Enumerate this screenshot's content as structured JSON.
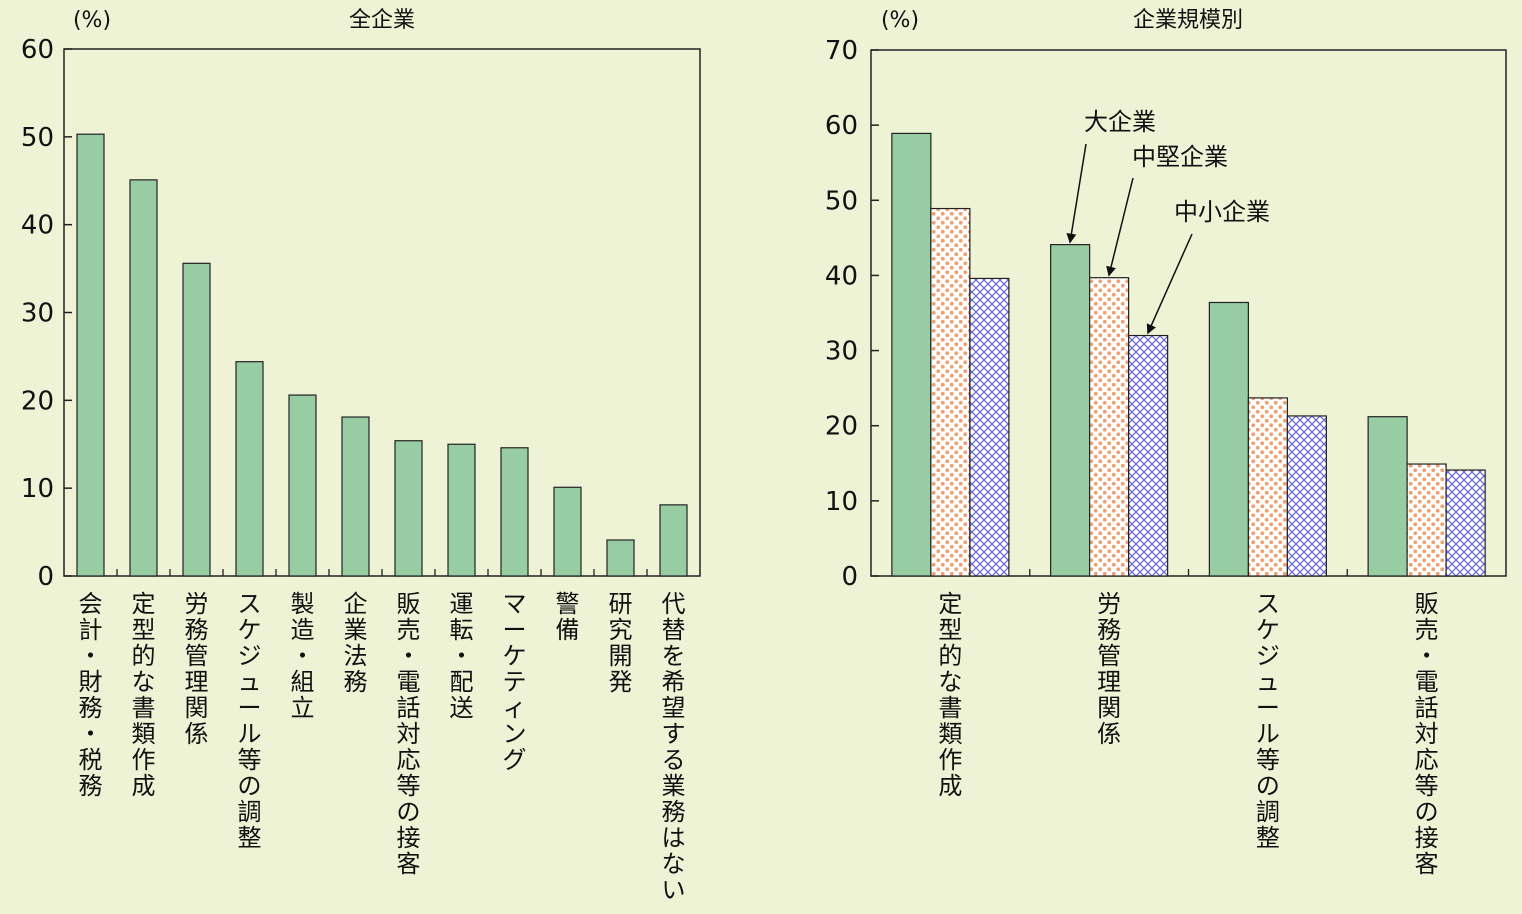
{
  "colors": {
    "background": "#eef3d6",
    "bar_green": "#98cda4",
    "pattern_orange": "#f0a070",
    "pattern_blue": "#6a6ad8",
    "axis": "#222222"
  },
  "chart_data": [
    {
      "type": "bar",
      "title": "全企業",
      "unit_label": "(%)",
      "ylim": [
        0,
        60
      ],
      "yticks": [
        0,
        10,
        20,
        30,
        40,
        50,
        60
      ],
      "grid": false,
      "categories": [
        "会計・財務・税務",
        "定型的な書類作成",
        "労務管理関係",
        "スケジュール等の調整",
        "製造・組立",
        "企業法務",
        "販売・電話対応等の接客",
        "運転・配送",
        "マーケティング",
        "警備",
        "研究開発",
        "代替を希望する業務はない"
      ],
      "values": [
        50.3,
        45.1,
        35.6,
        24.4,
        20.6,
        18.1,
        15.4,
        15.0,
        14.6,
        10.1,
        4.1,
        8.1
      ]
    },
    {
      "type": "bar",
      "title": "企業規模別",
      "unit_label": "(%)",
      "ylim": [
        0,
        70
      ],
      "yticks": [
        0,
        10,
        20,
        30,
        40,
        50,
        60,
        70
      ],
      "grid": false,
      "categories": [
        "定型的な書類作成",
        "労務管理関係",
        "スケジュール等の調整",
        "販売・電話対応等の接客"
      ],
      "series": [
        {
          "name": "大企業",
          "pattern": "solid",
          "values": [
            58.9,
            44.1,
            36.4,
            21.2
          ]
        },
        {
          "name": "中堅企業",
          "pattern": "dots",
          "values": [
            48.9,
            39.7,
            23.7,
            14.9
          ]
        },
        {
          "name": "中小企業",
          "pattern": "crosshatch",
          "values": [
            39.6,
            32.0,
            21.3,
            14.1
          ]
        }
      ],
      "legend_placement": "annotations with arrows to second category"
    }
  ]
}
